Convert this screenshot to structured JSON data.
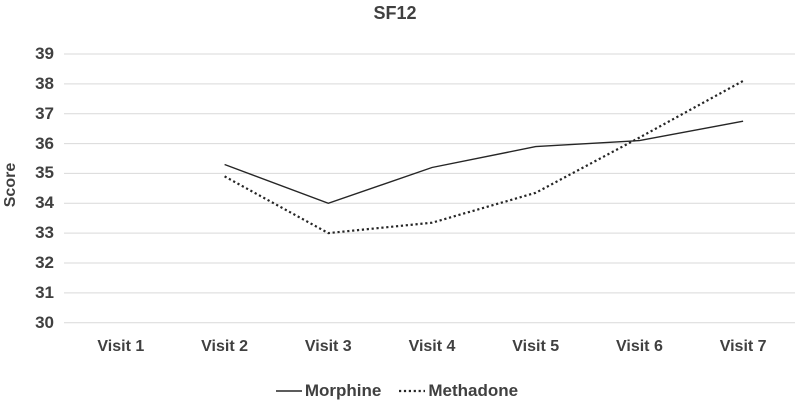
{
  "chart_data": {
    "type": "line",
    "title": "SF12",
    "xlabel": "",
    "ylabel": "Score",
    "categories": [
      "Visit 1",
      "Visit 2",
      "Visit 3",
      "Visit 4",
      "Visit 5",
      "Visit 6",
      "Visit 7"
    ],
    "series": [
      {
        "name": "Morphine",
        "line_style": "solid",
        "values": [
          null,
          35.3,
          34.0,
          35.2,
          35.9,
          36.1,
          36.75
        ]
      },
      {
        "name": "Methadone",
        "line_style": "dotted",
        "values": [
          null,
          34.9,
          33.0,
          33.35,
          34.35,
          36.2,
          38.1
        ]
      }
    ],
    "ylim": [
      30,
      39
    ],
    "ytick_step": 1,
    "grid": "horizontal-only",
    "legend_position": "bottom-center",
    "colors": {
      "line": "#262626",
      "grid": "#d9d9d9",
      "text": "#404040",
      "background": "#ffffff"
    }
  }
}
